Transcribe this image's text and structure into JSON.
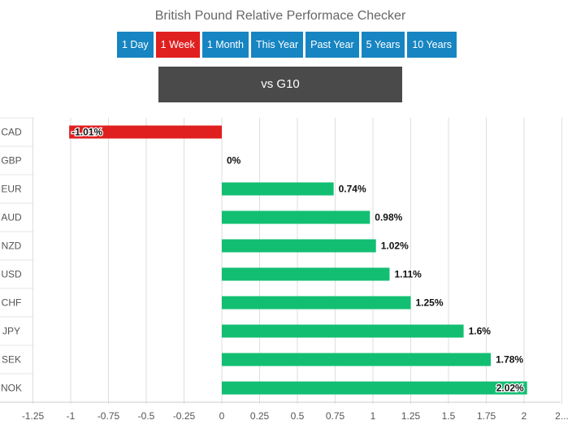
{
  "title": "British Pound Relative Performace Checker",
  "periods": [
    {
      "label": "1 Day",
      "active": false
    },
    {
      "label": "1 Week",
      "active": true
    },
    {
      "label": "1 Month",
      "active": false
    },
    {
      "label": "This Year",
      "active": false
    },
    {
      "label": "Past Year",
      "active": false
    },
    {
      "label": "5 Years",
      "active": false
    },
    {
      "label": "10 Years",
      "active": false
    }
  ],
  "comparison": "vs G10",
  "colors": {
    "positive": "#12bf72",
    "negative": "#e01f1f",
    "button": "#1785c2",
    "button_active": "#e01f1f",
    "comparison_box": "#4a4a4a"
  },
  "chart_data": {
    "type": "bar",
    "orientation": "horizontal",
    "categories": [
      "CAD",
      "GBP",
      "EUR",
      "AUD",
      "NZD",
      "USD",
      "CHF",
      "JPY",
      "SEK",
      "NOK"
    ],
    "values": [
      -1.01,
      0,
      0.74,
      0.98,
      1.02,
      1.11,
      1.25,
      1.6,
      1.78,
      2.02
    ],
    "data_labels": [
      "-1.01%",
      "0%",
      "0.74%",
      "0.98%",
      "1.02%",
      "1.11%",
      "1.25%",
      "1.6%",
      "1.78%",
      "2.02%"
    ],
    "x_ticks": [
      "-1.25",
      "-1",
      "-0.75",
      "-0.5",
      "-0.25",
      "0",
      "0.25",
      "0.5",
      "0.75",
      "1",
      "1.25",
      "1.5",
      "1.75",
      "2",
      "2..."
    ],
    "xlim": [
      -1.25,
      2.25
    ],
    "grid": true,
    "legend": "none"
  }
}
